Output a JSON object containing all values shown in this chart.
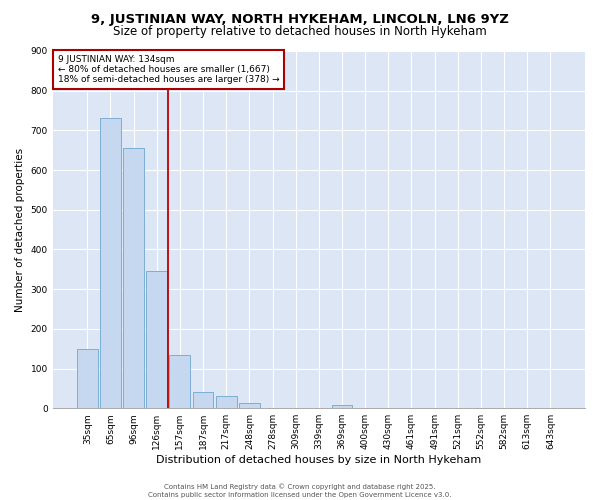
{
  "title": "9, JUSTINIAN WAY, NORTH HYKEHAM, LINCOLN, LN6 9YZ",
  "subtitle": "Size of property relative to detached houses in North Hykeham",
  "xlabel": "Distribution of detached houses by size in North Hykeham",
  "ylabel": "Number of detached properties",
  "categories": [
    "35sqm",
    "65sqm",
    "96sqm",
    "126sqm",
    "157sqm",
    "187sqm",
    "217sqm",
    "248sqm",
    "278sqm",
    "309sqm",
    "339sqm",
    "369sqm",
    "400sqm",
    "430sqm",
    "461sqm",
    "491sqm",
    "521sqm",
    "552sqm",
    "582sqm",
    "613sqm",
    "643sqm"
  ],
  "values": [
    150,
    730,
    655,
    345,
    135,
    42,
    30,
    12,
    0,
    0,
    0,
    8,
    0,
    0,
    0,
    0,
    0,
    0,
    0,
    0,
    0
  ],
  "bar_color": "#c5d8f0",
  "bar_edge_color": "#7bafd4",
  "vline_x": 3.5,
  "vline_color": "#bb0000",
  "annotation_title": "9 JUSTINIAN WAY: 134sqm",
  "annotation_line1": "← 80% of detached houses are smaller (1,667)",
  "annotation_line2": "18% of semi-detached houses are larger (378) →",
  "annotation_box_color": "#aa0000",
  "ylim": [
    0,
    900
  ],
  "yticks": [
    0,
    100,
    200,
    300,
    400,
    500,
    600,
    700,
    800,
    900
  ],
  "bg_color": "#dce6f5",
  "grid_color": "#ffffff",
  "footer_line1": "Contains HM Land Registry data © Crown copyright and database right 2025.",
  "footer_line2": "Contains public sector information licensed under the Open Government Licence v3.0.",
  "title_fontsize": 9.5,
  "subtitle_fontsize": 8.5,
  "ylabel_fontsize": 7.5,
  "xlabel_fontsize": 8,
  "tick_fontsize": 6.5,
  "ann_fontsize": 6.5,
  "footer_fontsize": 5
}
